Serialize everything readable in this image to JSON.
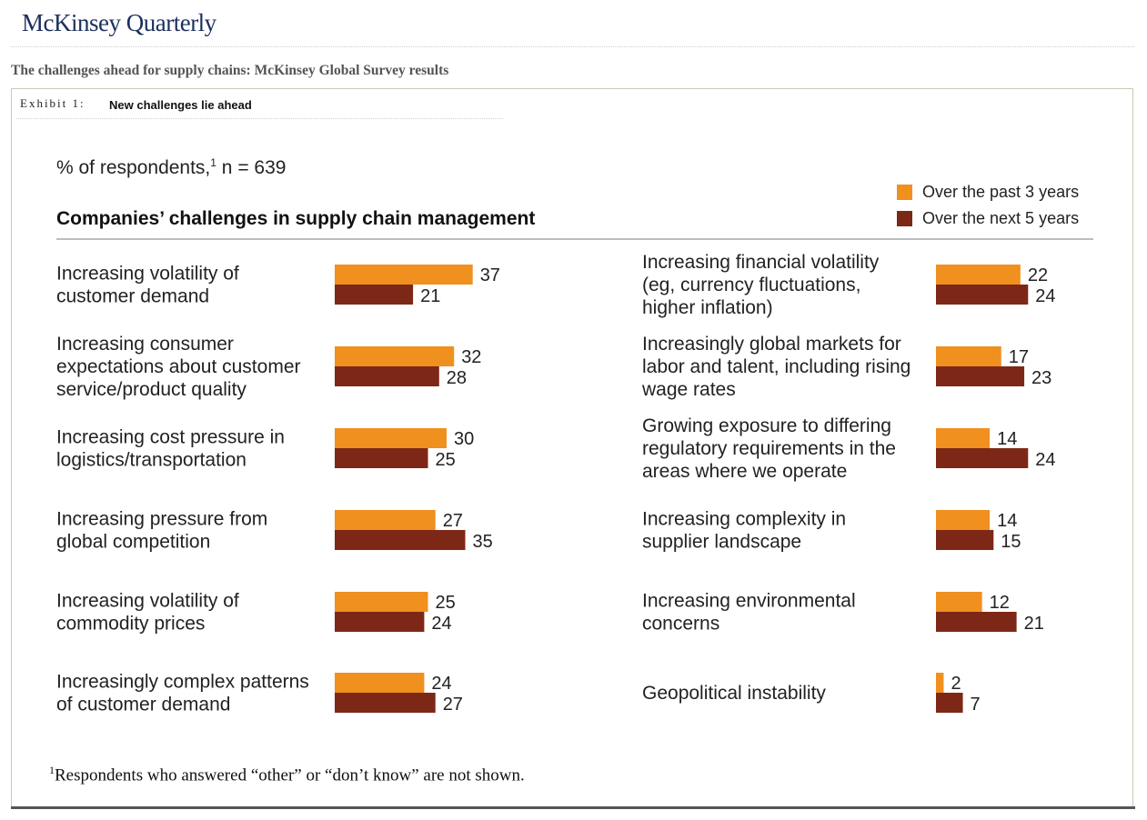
{
  "header": {
    "brand": "McKinsey Quarterly",
    "report_title": "The challenges ahead for supply chains: McKinsey Global Survey results",
    "exhibit_label": "Exhibit 1:",
    "exhibit_title": "New challenges lie ahead"
  },
  "colors": {
    "past": "#f0901e",
    "next": "#7d2816"
  },
  "chart_data": {
    "type": "bar",
    "orientation": "horizontal",
    "subtitle_main": "% of respondents,",
    "subtitle_sup": "1",
    "subtitle_tail": " n = 639",
    "title": "Companies’ challenges in supply chain management",
    "legend_placement": "top-right",
    "series": [
      {
        "name": "Over the past 3 years",
        "color": "#f0901e"
      },
      {
        "name": "Over the next 5 years",
        "color": "#7d2816"
      }
    ],
    "panels": [
      {
        "categories": [
          [
            "Increasing volatility of",
            "customer demand"
          ],
          [
            "Increasing consumer",
            "expectations about customer",
            "service/product quality"
          ],
          [
            "Increasing cost pressure in",
            "logistics/transportation"
          ],
          [
            "Increasing pressure from",
            "global competition"
          ],
          [
            "Increasing volatility of",
            "commodity prices"
          ],
          [
            "Increasingly complex patterns",
            "of customer demand"
          ]
        ],
        "past": [
          37,
          32,
          30,
          27,
          25,
          24
        ],
        "next": [
          21,
          28,
          25,
          35,
          24,
          27
        ]
      },
      {
        "categories": [
          [
            "Increasing financial volatility",
            "(eg, currency fluctuations,",
            "higher inflation)"
          ],
          [
            "Increasingly global markets for",
            "labor and talent, including rising",
            "wage rates"
          ],
          [
            "Growing exposure to differing",
            "regulatory requirements in the",
            "areas where we operate"
          ],
          [
            "Increasing complexity in",
            "supplier landscape"
          ],
          [
            "Increasing environmental",
            "concerns"
          ],
          [
            "Geopolitical instability"
          ]
        ],
        "past": [
          22,
          17,
          14,
          14,
          12,
          2
        ],
        "next": [
          24,
          23,
          24,
          15,
          21,
          7
        ]
      }
    ]
  },
  "footnote": {
    "marker": "1",
    "text": "Respondents who answered “other” or “don’t know” are not shown."
  }
}
